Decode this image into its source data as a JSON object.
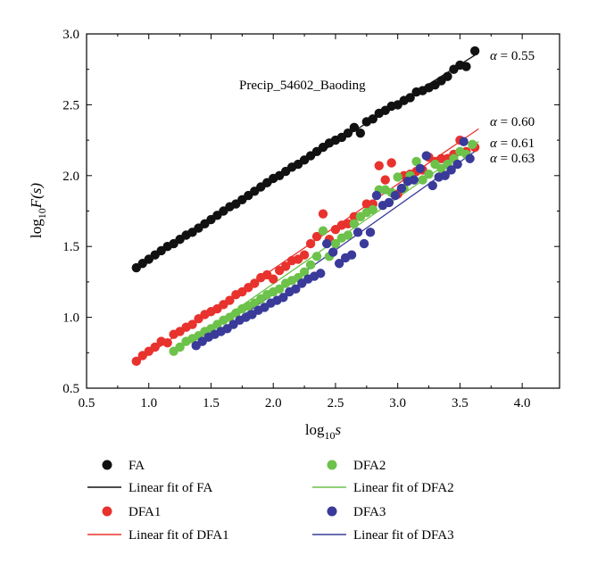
{
  "chart_data": {
    "type": "scatter",
    "title": "",
    "annotation": "Precip_54602_Baoding",
    "xlabel": {
      "base": "log",
      "sub": "10",
      "tail": "s"
    },
    "ylabel": {
      "base": "log",
      "sub": "10",
      "tail": "F(s)"
    },
    "xlim": [
      0.5,
      4.3
    ],
    "ylim": [
      0.5,
      3.0
    ],
    "xticks": [
      0.5,
      1.0,
      1.5,
      2.0,
      2.5,
      3.0,
      3.5,
      4.0
    ],
    "xtick_labels": [
      "0.5",
      "1.0",
      "1.5",
      "2.0",
      "2.5",
      "3.0",
      "3.5",
      "4.0"
    ],
    "yticks": [
      0.5,
      1.0,
      1.5,
      2.0,
      2.5,
      3.0
    ],
    "ytick_labels": [
      "0.5",
      "1.0",
      "1.5",
      "2.0",
      "2.5",
      "3.0"
    ],
    "grid": false,
    "legend_position": "bottom",
    "series": [
      {
        "name": "FA",
        "color": "#111111",
        "fit_name": "Linear fit of FA",
        "fit_color": "#111111",
        "alpha_label": "α = 0.55",
        "fit": {
          "x0": 0.9,
          "y0": 1.35,
          "x1": 3.62,
          "y1": 2.85
        },
        "x": [
          0.9,
          0.95,
          1.0,
          1.05,
          1.1,
          1.15,
          1.2,
          1.25,
          1.3,
          1.35,
          1.4,
          1.45,
          1.5,
          1.55,
          1.6,
          1.65,
          1.7,
          1.75,
          1.8,
          1.85,
          1.9,
          1.95,
          2.0,
          2.05,
          2.1,
          2.15,
          2.2,
          2.25,
          2.3,
          2.35,
          2.4,
          2.45,
          2.5,
          2.55,
          2.6,
          2.65,
          2.7,
          2.75,
          2.8,
          2.85,
          2.9,
          2.95,
          3.0,
          3.05,
          3.1,
          3.15,
          3.2,
          3.25,
          3.3,
          3.35,
          3.4,
          3.45,
          3.5,
          3.55,
          3.62
        ],
        "y": [
          1.35,
          1.38,
          1.41,
          1.44,
          1.47,
          1.5,
          1.52,
          1.55,
          1.58,
          1.6,
          1.63,
          1.66,
          1.69,
          1.72,
          1.75,
          1.78,
          1.8,
          1.83,
          1.86,
          1.89,
          1.92,
          1.95,
          1.98,
          2.0,
          2.03,
          2.06,
          2.08,
          2.11,
          2.14,
          2.17,
          2.2,
          2.23,
          2.25,
          2.27,
          2.3,
          2.34,
          2.3,
          2.38,
          2.4,
          2.44,
          2.46,
          2.49,
          2.5,
          2.53,
          2.55,
          2.59,
          2.6,
          2.62,
          2.64,
          2.67,
          2.7,
          2.75,
          2.78,
          2.77,
          2.88
        ]
      },
      {
        "name": "DFA1",
        "color": "#e8322d",
        "fit_name": "Linear fit of DFA1",
        "fit_color": "#e8322d",
        "alpha_label": "α = 0.60",
        "fit": {
          "x0": 0.9,
          "y0": 0.68,
          "x1": 3.65,
          "y1": 2.33
        },
        "x": [
          0.9,
          0.95,
          1.0,
          1.05,
          1.1,
          1.15,
          1.2,
          1.25,
          1.3,
          1.35,
          1.4,
          1.45,
          1.5,
          1.55,
          1.6,
          1.65,
          1.7,
          1.75,
          1.8,
          1.85,
          1.9,
          1.95,
          2.0,
          2.05,
          2.1,
          2.15,
          2.2,
          2.25,
          2.3,
          2.35,
          2.4,
          2.45,
          2.5,
          2.55,
          2.6,
          2.65,
          2.7,
          2.75,
          2.8,
          2.85,
          2.9,
          2.95,
          3.0,
          3.05,
          3.1,
          3.15,
          3.2,
          3.25,
          3.3,
          3.35,
          3.4,
          3.45,
          3.5,
          3.55,
          3.62
        ],
        "y": [
          0.69,
          0.73,
          0.76,
          0.79,
          0.83,
          0.82,
          0.88,
          0.9,
          0.93,
          0.95,
          0.99,
          1.02,
          1.04,
          1.06,
          1.09,
          1.12,
          1.16,
          1.18,
          1.21,
          1.24,
          1.28,
          1.3,
          1.27,
          1.33,
          1.36,
          1.4,
          1.41,
          1.44,
          1.52,
          1.57,
          1.73,
          1.55,
          1.62,
          1.65,
          1.66,
          1.71,
          1.71,
          1.8,
          1.8,
          2.07,
          1.97,
          2.09,
          1.87,
          2.0,
          2.01,
          2.03,
          2.04,
          2.13,
          2.1,
          2.12,
          2.12,
          2.15,
          2.25,
          2.17,
          2.2
        ]
      },
      {
        "name": "DFA2",
        "color": "#6cc24a",
        "fit_name": "Linear fit of DFA2",
        "fit_color": "#6cc24a",
        "alpha_label": "α = 0.61",
        "fit": {
          "x0": 1.2,
          "y0": 0.75,
          "x1": 3.65,
          "y1": 2.24
        },
        "x": [
          1.2,
          1.25,
          1.3,
          1.35,
          1.4,
          1.45,
          1.5,
          1.55,
          1.6,
          1.65,
          1.7,
          1.75,
          1.8,
          1.85,
          1.9,
          1.95,
          2.0,
          2.05,
          2.1,
          2.15,
          2.2,
          2.25,
          2.3,
          2.35,
          2.4,
          2.45,
          2.5,
          2.55,
          2.6,
          2.65,
          2.7,
          2.75,
          2.8,
          2.85,
          2.9,
          2.95,
          3.0,
          3.05,
          3.1,
          3.15,
          3.2,
          3.25,
          3.3,
          3.35,
          3.4,
          3.45,
          3.5,
          3.55,
          3.6
        ],
        "y": [
          0.76,
          0.79,
          0.83,
          0.85,
          0.87,
          0.9,
          0.92,
          0.95,
          0.98,
          1.0,
          1.03,
          1.06,
          1.08,
          1.1,
          1.13,
          1.16,
          1.18,
          1.2,
          1.24,
          1.26,
          1.28,
          1.32,
          1.37,
          1.43,
          1.61,
          1.43,
          1.52,
          1.56,
          1.58,
          1.66,
          1.71,
          1.74,
          1.76,
          1.9,
          1.9,
          1.88,
          1.99,
          1.91,
          2.0,
          2.1,
          1.97,
          2.01,
          2.08,
          2.05,
          2.08,
          2.12,
          2.17,
          2.15,
          2.22
        ]
      },
      {
        "name": "DFA3",
        "color": "#3a3a9a",
        "fit_name": "Linear fit of DFA3",
        "fit_color": "#3a3a9a",
        "alpha_label": "α = 0.63",
        "fit": {
          "x0": 1.38,
          "y0": 0.78,
          "x1": 3.65,
          "y1": 2.19
        },
        "x": [
          1.38,
          1.43,
          1.48,
          1.53,
          1.58,
          1.63,
          1.68,
          1.73,
          1.78,
          1.83,
          1.88,
          1.93,
          1.98,
          2.03,
          2.08,
          2.13,
          2.18,
          2.23,
          2.28,
          2.33,
          2.38,
          2.43,
          2.48,
          2.53,
          2.58,
          2.63,
          2.68,
          2.73,
          2.78,
          2.83,
          2.88,
          2.93,
          2.98,
          3.03,
          3.08,
          3.13,
          3.18,
          3.23,
          3.28,
          3.33,
          3.38,
          3.43,
          3.48,
          3.53,
          3.58
        ],
        "y": [
          0.8,
          0.83,
          0.86,
          0.88,
          0.9,
          0.92,
          0.95,
          0.98,
          1.0,
          1.02,
          1.05,
          1.07,
          1.1,
          1.12,
          1.14,
          1.18,
          1.2,
          1.24,
          1.27,
          1.29,
          1.31,
          1.52,
          1.46,
          1.38,
          1.42,
          1.44,
          1.6,
          1.52,
          1.6,
          1.86,
          1.79,
          1.81,
          1.86,
          1.91,
          1.96,
          1.97,
          2.05,
          2.14,
          1.93,
          1.99,
          2.0,
          2.04,
          2.08,
          2.24,
          2.12
        ]
      }
    ]
  }
}
